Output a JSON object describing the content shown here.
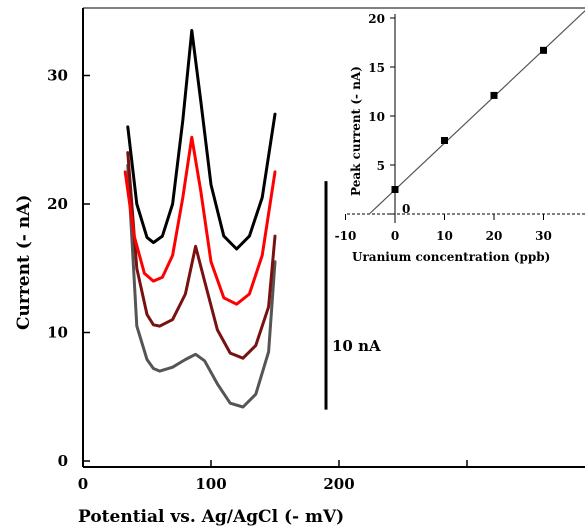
{
  "chart_data": [
    {
      "type": "line",
      "title": "",
      "xlabel": "Potential vs. Ag/AgCl (- mV)",
      "ylabel": "Current (- nA)",
      "xlim": [
        0,
        380
      ],
      "ylim": [
        0,
        35
      ],
      "x_ticks": [
        "0",
        "100",
        "200"
      ],
      "y_ticks": [
        "0",
        "10",
        "20",
        "30"
      ],
      "grid": false,
      "legend": "none",
      "series": [
        {
          "color": "#555555",
          "x": [
            35,
            42,
            50,
            55,
            60,
            70,
            80,
            88,
            95,
            105,
            115,
            125,
            135,
            145,
            150
          ],
          "values": [
            23.0,
            10.5,
            7.9,
            7.2,
            7.0,
            7.3,
            7.9,
            8.3,
            7.8,
            6.0,
            4.5,
            4.2,
            5.2,
            8.5,
            15.5
          ]
        },
        {
          "color": "#7a1010",
          "x": [
            35,
            42,
            50,
            55,
            60,
            70,
            80,
            88,
            95,
            105,
            115,
            125,
            135,
            145,
            150
          ],
          "values": [
            24.0,
            15.0,
            11.4,
            10.6,
            10.5,
            11.0,
            13.0,
            16.7,
            14.0,
            10.2,
            8.4,
            8.0,
            9.0,
            12.0,
            17.5
          ]
        },
        {
          "color": "#ff0000",
          "x": [
            33,
            40,
            48,
            55,
            62,
            70,
            78,
            85,
            92,
            100,
            110,
            120,
            130,
            140,
            150
          ],
          "values": [
            22.5,
            17.5,
            14.6,
            14.0,
            14.3,
            16.0,
            20.5,
            25.2,
            21.0,
            15.5,
            12.7,
            12.2,
            13.0,
            16.0,
            22.5
          ]
        },
        {
          "color": "#000000",
          "x": [
            35,
            42,
            50,
            55,
            62,
            70,
            78,
            85,
            92,
            100,
            110,
            120,
            130,
            140,
            150
          ],
          "values": [
            26.0,
            20.0,
            17.4,
            17.0,
            17.5,
            20.0,
            26.5,
            33.5,
            28.0,
            21.5,
            17.5,
            16.5,
            17.5,
            20.5,
            27.0
          ]
        }
      ],
      "annotations": [
        {
          "text": "10 nA",
          "type": "scale-bar",
          "x": 190,
          "y_range": [
            4,
            14
          ]
        }
      ]
    },
    {
      "type": "scatter",
      "title": "",
      "xlabel": "Uranium concentration (ppb)",
      "ylabel": "Peak current (- nA)",
      "xlim": [
        -12,
        40
      ],
      "ylim": [
        -2,
        20
      ],
      "x_ticks": [
        "-10",
        "0",
        "10",
        "20",
        "30"
      ],
      "y_ticks": [
        "0",
        "5",
        "10",
        "15",
        "20"
      ],
      "grid": false,
      "legend": "none",
      "points": {
        "x": [
          0,
          10,
          20,
          30
        ],
        "y": [
          2.5,
          7.5,
          12.1,
          16.7
        ]
      },
      "fit_line": {
        "x": [
          -5.2,
          40
        ],
        "y": [
          0,
          21.5
        ]
      }
    }
  ]
}
